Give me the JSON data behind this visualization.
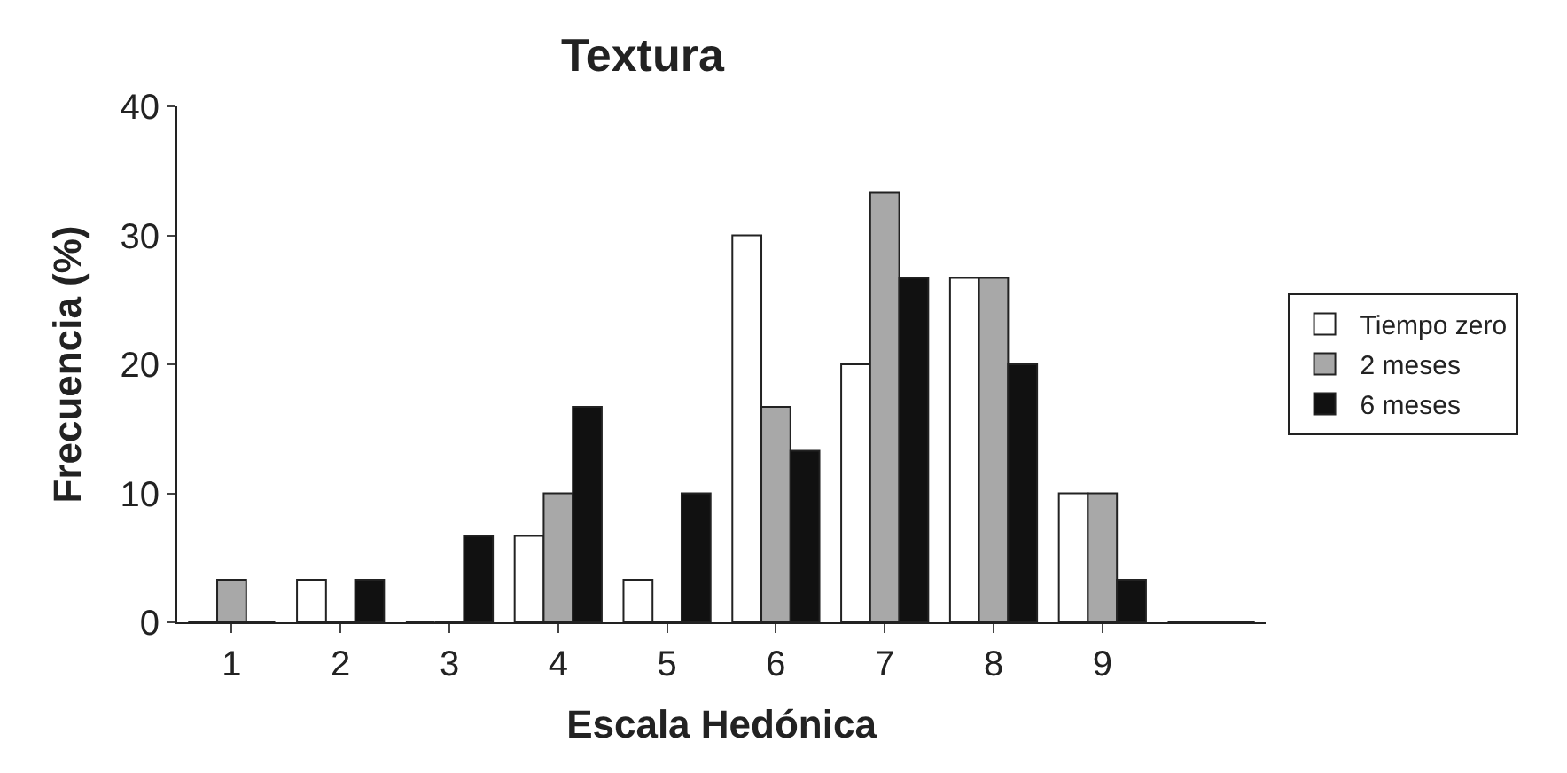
{
  "chart_data": {
    "type": "bar",
    "title": "Textura",
    "xlabel": "Escala Hedónica",
    "ylabel": "Frecuencia (%)",
    "categories": [
      "1",
      "2",
      "3",
      "4",
      "5",
      "6",
      "7",
      "8",
      "9",
      null
    ],
    "series": [
      {
        "name": "Tiempo zero",
        "color": "#ffffff",
        "values": [
          0,
          3.3,
          0,
          6.7,
          3.3,
          30,
          20,
          26.7,
          10,
          0
        ]
      },
      {
        "name": "2 meses",
        "color": "#a8a8a8",
        "values": [
          3.3,
          0,
          0,
          10,
          0,
          16.7,
          33.3,
          26.7,
          10,
          0
        ]
      },
      {
        "name": "6 meses",
        "color": "#111111",
        "values": [
          0,
          3.3,
          6.7,
          16.7,
          10,
          13.3,
          26.7,
          20,
          3.3,
          0
        ]
      }
    ],
    "ylim": [
      0,
      40
    ],
    "yticks": [
      0,
      10,
      20,
      30,
      40
    ],
    "grid": false,
    "legend": "right"
  }
}
